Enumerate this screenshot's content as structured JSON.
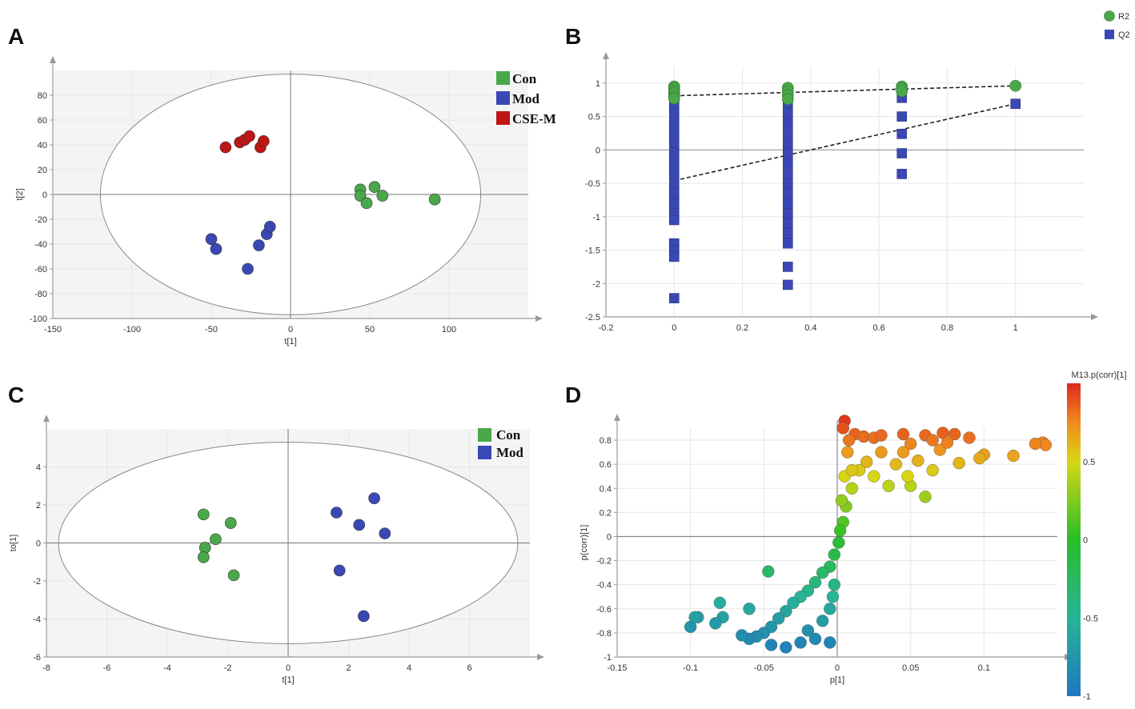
{
  "colors": {
    "con": "#4aa84a",
    "mod": "#3a48b5",
    "csem": "#c01515",
    "grid": "#e6e6e6",
    "axis": "#999999",
    "bg_plot": "#f4f4f4"
  },
  "panels": {
    "A": {
      "letter": "A"
    },
    "B": {
      "letter": "B"
    },
    "C": {
      "letter": "C"
    },
    "D": {
      "letter": "D"
    }
  },
  "chart_data": [
    {
      "id": "A",
      "type": "scatter",
      "xlabel": "t[1]",
      "ylabel": "t[2]",
      "xlim": [
        -150,
        150
      ],
      "ylim": [
        -100,
        100
      ],
      "xticks": [
        -150,
        -100,
        -50,
        0,
        50,
        100
      ],
      "yticks": [
        -100,
        -80,
        -60,
        -40,
        -20,
        0,
        20,
        40,
        60,
        80
      ],
      "ellipse": {
        "rx": 120,
        "ry": 97
      },
      "legend": [
        "Con",
        "Mod",
        "CSE-M"
      ],
      "series": [
        {
          "name": "Con",
          "color": "#4aa84a",
          "points": [
            [
              44,
              4
            ],
            [
              44,
              -1
            ],
            [
              48,
              -7
            ],
            [
              53,
              6
            ],
            [
              58,
              -1
            ],
            [
              91,
              -4
            ]
          ]
        },
        {
          "name": "Mod",
          "color": "#3a48b5",
          "points": [
            [
              -50,
              -36
            ],
            [
              -47,
              -44
            ],
            [
              -27,
              -60
            ],
            [
              -20,
              -41
            ],
            [
              -15,
              -32
            ],
            [
              -13,
              -26
            ]
          ]
        },
        {
          "name": "CSE-M",
          "color": "#c01515",
          "points": [
            [
              -41,
              38
            ],
            [
              -32,
              42
            ],
            [
              -29,
              44
            ],
            [
              -26,
              47
            ],
            [
              -19,
              38
            ],
            [
              -17,
              43
            ]
          ]
        }
      ]
    },
    {
      "id": "B",
      "type": "scatter",
      "xlabel": "",
      "ylabel": "",
      "xlim": [
        -0.2,
        1.2
      ],
      "ylim": [
        -2.5,
        1.25
      ],
      "xticks": [
        -0.2,
        0,
        0.2,
        0.4,
        0.6,
        0.8,
        1
      ],
      "yticks": [
        -2.5,
        -2,
        -1.5,
        -1,
        -0.5,
        0,
        0.5,
        1
      ],
      "legend": [
        "R2",
        "Q2"
      ],
      "series": [
        {
          "name": "R2",
          "color": "#4aa84a",
          "marker": "circle",
          "points": [
            [
              0,
              0.95
            ],
            [
              0,
              0.92
            ],
            [
              0,
              0.88
            ],
            [
              0,
              0.85
            ],
            [
              0,
              0.8
            ],
            [
              0,
              0.77
            ],
            [
              0.333,
              0.93
            ],
            [
              0.333,
              0.88
            ],
            [
              0.333,
              0.82
            ],
            [
              0.333,
              0.76
            ],
            [
              0.667,
              0.95
            ],
            [
              0.667,
              0.92
            ],
            [
              0.667,
              0.88
            ],
            [
              1,
              0.96
            ]
          ]
        },
        {
          "name": "Q2",
          "color": "#3a48b5",
          "marker": "square",
          "points": [
            [
              0,
              0.7
            ],
            [
              0,
              0.55
            ],
            [
              0,
              0.4
            ],
            [
              0,
              0.25
            ],
            [
              0,
              0.1
            ],
            [
              0,
              -0.05
            ],
            [
              0,
              -0.2
            ],
            [
              0,
              -0.35
            ],
            [
              0,
              -0.5
            ],
            [
              0,
              -0.65
            ],
            [
              0,
              -0.8
            ],
            [
              0,
              -0.95
            ],
            [
              0,
              -1.05
            ],
            [
              0,
              -1.4
            ],
            [
              0,
              -1.5
            ],
            [
              0,
              -1.6
            ],
            [
              0,
              -2.22
            ],
            [
              0.333,
              0.7
            ],
            [
              0.333,
              0.55
            ],
            [
              0.333,
              0.4
            ],
            [
              0.333,
              0.25
            ],
            [
              0.333,
              0.1
            ],
            [
              0.333,
              -0.05
            ],
            [
              0.333,
              -0.2
            ],
            [
              0.333,
              -0.35
            ],
            [
              0.333,
              -0.5
            ],
            [
              0.333,
              -0.65
            ],
            [
              0.333,
              -0.8
            ],
            [
              0.333,
              -0.95
            ],
            [
              0.333,
              -1.1
            ],
            [
              0.333,
              -1.25
            ],
            [
              0.333,
              -1.4
            ],
            [
              0.333,
              -1.75
            ],
            [
              0.333,
              -2.02
            ],
            [
              0.667,
              0.78
            ],
            [
              0.667,
              0.5
            ],
            [
              0.667,
              0.24
            ],
            [
              0.667,
              -0.05
            ],
            [
              0.667,
              -0.36
            ],
            [
              1,
              0.69
            ]
          ]
        }
      ],
      "trend_lines": [
        {
          "name": "R2 trend",
          "points": [
            [
              0,
              0.81
            ],
            [
              1,
              0.96
            ]
          ]
        },
        {
          "name": "Q2 trend",
          "points": [
            [
              0,
              -0.46
            ],
            [
              1,
              0.69
            ]
          ]
        }
      ]
    },
    {
      "id": "C",
      "type": "scatter",
      "xlabel": "t[1]",
      "ylabel": "to[1]",
      "xlim": [
        -8,
        8
      ],
      "ylim": [
        -6,
        6
      ],
      "xticks": [
        -8,
        -6,
        -4,
        -2,
        0,
        2,
        4,
        6
      ],
      "yticks": [
        -6,
        -4,
        -2,
        0,
        2,
        4
      ],
      "ellipse": {
        "rx": 7.6,
        "ry": 5.3
      },
      "legend": [
        "Con",
        "Mod"
      ],
      "series": [
        {
          "name": "Con",
          "color": "#4aa84a",
          "points": [
            [
              -2.8,
              1.5
            ],
            [
              -1.9,
              1.05
            ],
            [
              -2.4,
              0.2
            ],
            [
              -2.75,
              -0.25
            ],
            [
              -2.8,
              -0.75
            ],
            [
              -1.8,
              -1.7
            ]
          ]
        },
        {
          "name": "Mod",
          "color": "#3a48b5",
          "points": [
            [
              1.6,
              1.6
            ],
            [
              2.85,
              2.35
            ],
            [
              2.35,
              0.95
            ],
            [
              3.2,
              0.5
            ],
            [
              1.7,
              -1.45
            ],
            [
              2.5,
              -3.85
            ]
          ]
        }
      ]
    },
    {
      "id": "D",
      "type": "scatter",
      "xlabel": "p[1]",
      "ylabel": "p(corr)[1]",
      "xlim": [
        -0.15,
        0.15
      ],
      "ylim": [
        -1,
        0.9
      ],
      "xticks": [
        -0.15,
        -0.1,
        -0.05,
        0,
        0.05,
        0.1
      ],
      "yticks": [
        -1,
        -0.8,
        -0.6,
        -0.4,
        -0.2,
        0,
        0.2,
        0.4,
        0.6,
        0.8
      ],
      "colorbar": {
        "title": "M13.p(corr)[1]",
        "ticks": [
          0.5,
          0,
          -0.5,
          -1
        ],
        "range": [
          -1,
          1
        ]
      },
      "points": [
        [
          0.005,
          0.96
        ],
        [
          0.012,
          0.85
        ],
        [
          0.018,
          0.83
        ],
        [
          0.025,
          0.82
        ],
        [
          0.03,
          0.84
        ],
        [
          0.045,
          0.85
        ],
        [
          0.06,
          0.84
        ],
        [
          0.072,
          0.86
        ],
        [
          0.08,
          0.85
        ],
        [
          0.09,
          0.82
        ],
        [
          0.14,
          0.78
        ],
        [
          0.142,
          0.76
        ],
        [
          0.1,
          0.68
        ],
        [
          0.083,
          0.61
        ],
        [
          0.097,
          0.65
        ],
        [
          0.12,
          0.67
        ],
        [
          0.135,
          0.77
        ],
        [
          0.065,
          0.55
        ],
        [
          0.05,
          0.42
        ],
        [
          0.035,
          0.42
        ],
        [
          0.06,
          0.33
        ],
        [
          0.048,
          0.5
        ],
        [
          0.04,
          0.6
        ],
        [
          0.055,
          0.63
        ],
        [
          0.07,
          0.72
        ],
        [
          0.03,
          0.7
        ],
        [
          0.02,
          0.62
        ],
        [
          0.015,
          0.55
        ],
        [
          0.01,
          0.4
        ],
        [
          0.006,
          0.25
        ],
        [
          0.004,
          0.12
        ],
        [
          0.002,
          0.05
        ],
        [
          0.001,
          -0.05
        ],
        [
          -0.002,
          -0.15
        ],
        [
          -0.005,
          -0.25
        ],
        [
          -0.01,
          -0.3
        ],
        [
          -0.015,
          -0.38
        ],
        [
          -0.02,
          -0.45
        ],
        [
          -0.025,
          -0.5
        ],
        [
          -0.03,
          -0.55
        ],
        [
          -0.035,
          -0.62
        ],
        [
          -0.04,
          -0.68
        ],
        [
          -0.045,
          -0.75
        ],
        [
          -0.05,
          -0.8
        ],
        [
          -0.055,
          -0.83
        ],
        [
          -0.06,
          -0.85
        ],
        [
          -0.065,
          -0.82
        ],
        [
          -0.047,
          -0.29
        ],
        [
          -0.06,
          -0.6
        ],
        [
          -0.08,
          -0.55
        ],
        [
          -0.078,
          -0.67
        ],
        [
          -0.083,
          -0.72
        ],
        [
          -0.095,
          -0.67
        ],
        [
          -0.1,
          -0.75
        ],
        [
          -0.097,
          -0.67
        ],
        [
          -0.045,
          -0.9
        ],
        [
          -0.035,
          -0.92
        ],
        [
          -0.025,
          -0.88
        ],
        [
          -0.015,
          -0.85
        ],
        [
          -0.005,
          -0.88
        ],
        [
          -0.02,
          -0.78
        ],
        [
          -0.01,
          -0.7
        ],
        [
          -0.005,
          -0.6
        ],
        [
          -0.003,
          -0.5
        ],
        [
          -0.002,
          -0.4
        ],
        [
          0.003,
          0.3
        ],
        [
          0.005,
          0.5
        ],
        [
          0.007,
          0.7
        ],
        [
          0.008,
          0.8
        ],
        [
          0.004,
          0.9
        ],
        [
          0.01,
          0.55
        ],
        [
          0.025,
          0.5
        ],
        [
          0.045,
          0.7
        ],
        [
          0.05,
          0.77
        ],
        [
          0.065,
          0.8
        ],
        [
          0.075,
          0.78
        ]
      ]
    }
  ]
}
